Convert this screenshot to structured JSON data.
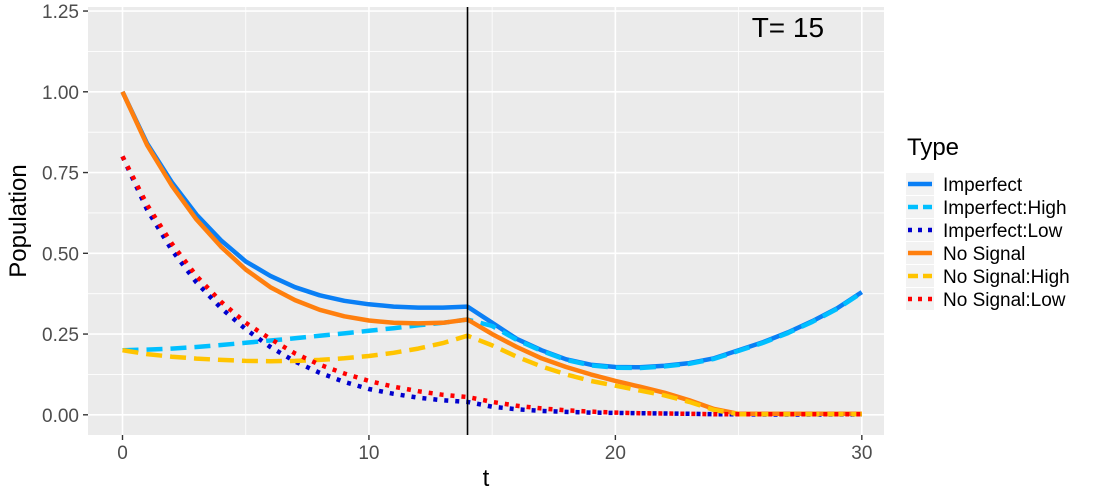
{
  "chart_data": {
    "type": "line",
    "xlabel": "t",
    "ylabel": "Population",
    "xlim": [
      -1.4,
      30.9
    ],
    "ylim": [
      -0.0625,
      1.2625
    ],
    "x_ticks": [
      0,
      10,
      20,
      30
    ],
    "x_tick_labels": [
      "0",
      "10",
      "20",
      "30"
    ],
    "y_ticks": [
      0,
      0.25,
      0.5,
      0.75,
      1,
      1.25
    ],
    "y_tick_labels": [
      "0.00",
      "0.25",
      "0.50",
      "0.75",
      "1.00",
      "1.25"
    ],
    "grid": true,
    "vline": {
      "x": 14,
      "color": "#000000"
    },
    "annotation": {
      "text": "T= 15",
      "x": 27,
      "y": 1.2
    },
    "legend": {
      "title": "Type",
      "position": "right"
    },
    "x": [
      0,
      1,
      2,
      3,
      4,
      5,
      6,
      7,
      8,
      9,
      10,
      11,
      12,
      13,
      14,
      15,
      16,
      17,
      18,
      19,
      20,
      21,
      22,
      23,
      24,
      25,
      26,
      27,
      28,
      29,
      30
    ],
    "series": [
      {
        "name": "Imperfect",
        "color": "#0a7ff5",
        "style": "solid",
        "values": [
          1.0,
          0.84,
          0.72,
          0.62,
          0.54,
          0.475,
          0.43,
          0.395,
          0.37,
          0.353,
          0.342,
          0.335,
          0.332,
          0.332,
          0.335,
          0.285,
          0.235,
          0.2,
          0.172,
          0.155,
          0.148,
          0.147,
          0.152,
          0.16,
          0.175,
          0.2,
          0.225,
          0.255,
          0.29,
          0.33,
          0.38
        ]
      },
      {
        "name": "Imperfect:High",
        "color": "#00bfff",
        "style": "dashed",
        "values": [
          0.2,
          0.202,
          0.205,
          0.21,
          0.216,
          0.223,
          0.23,
          0.237,
          0.245,
          0.252,
          0.26,
          0.268,
          0.277,
          0.285,
          0.295,
          0.275,
          0.232,
          0.198,
          0.17,
          0.153,
          0.146,
          0.145,
          0.15,
          0.158,
          0.173,
          0.198,
          0.223,
          0.253,
          0.288,
          0.328,
          0.378
        ]
      },
      {
        "name": "Imperfect:Low",
        "color": "#0000cd",
        "style": "dotted",
        "values": [
          0.8,
          0.635,
          0.51,
          0.41,
          0.33,
          0.265,
          0.21,
          0.165,
          0.13,
          0.102,
          0.08,
          0.065,
          0.053,
          0.045,
          0.04,
          0.025,
          0.017,
          0.012,
          0.009,
          0.007,
          0.006,
          0.005,
          0.004,
          0.003,
          0.002,
          0.002,
          0.001,
          0.001,
          0.001,
          0.001,
          0.001
        ]
      },
      {
        "name": "No Signal",
        "color": "#ff7f0e",
        "style": "solid",
        "values": [
          1.0,
          0.835,
          0.71,
          0.605,
          0.52,
          0.45,
          0.395,
          0.355,
          0.325,
          0.305,
          0.292,
          0.285,
          0.283,
          0.285,
          0.295,
          0.25,
          0.21,
          0.175,
          0.148,
          0.125,
          0.105,
          0.087,
          0.068,
          0.045,
          0.018,
          0.003,
          0.003,
          0.003,
          0.003,
          0.003,
          0.003
        ]
      },
      {
        "name": "No Signal:High",
        "color": "#ffc400",
        "style": "dashed",
        "values": [
          0.2,
          0.188,
          0.18,
          0.174,
          0.17,
          0.167,
          0.166,
          0.167,
          0.17,
          0.175,
          0.182,
          0.192,
          0.205,
          0.222,
          0.245,
          0.215,
          0.18,
          0.15,
          0.125,
          0.105,
          0.09,
          0.075,
          0.06,
          0.04,
          0.015,
          0.002,
          0.002,
          0.002,
          0.002,
          0.002,
          0.002
        ]
      },
      {
        "name": "No Signal:Low",
        "color": "#ff0000",
        "style": "dotted",
        "values": [
          0.8,
          0.65,
          0.53,
          0.43,
          0.35,
          0.285,
          0.235,
          0.19,
          0.155,
          0.128,
          0.105,
          0.087,
          0.073,
          0.062,
          0.055,
          0.04,
          0.028,
          0.02,
          0.014,
          0.01,
          0.007,
          0.005,
          0.004,
          0.003,
          0.002,
          0.002,
          0.002,
          0.002,
          0.002,
          0.002,
          0.002
        ]
      }
    ]
  }
}
